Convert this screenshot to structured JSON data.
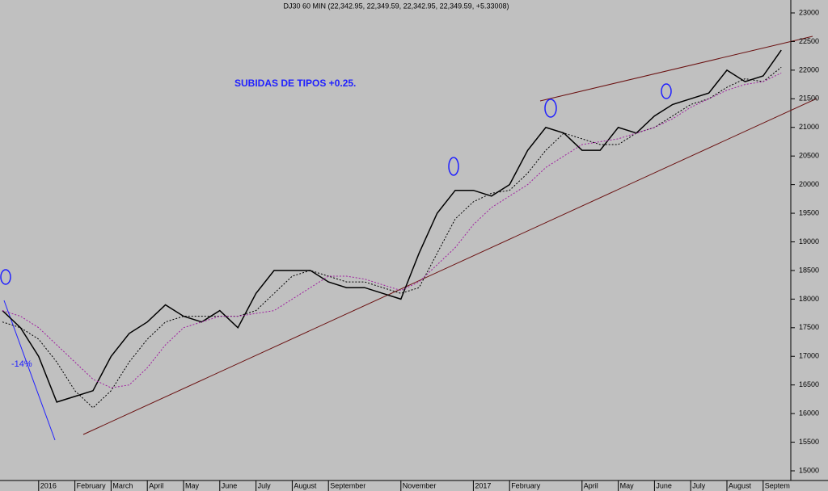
{
  "chart_data": {
    "type": "line",
    "title": "DJ30 60 MIN (22,342.95, 22,349.59, 22,342.95, 22,349.59, +5.33008)",
    "annotations": [
      "SUBIDAS DE TIPOS +0.25.",
      "-14%"
    ],
    "categories": [
      null,
      null,
      "2016",
      null,
      "February",
      null,
      "March",
      null,
      "April",
      null,
      "May",
      null,
      "June",
      null,
      "July",
      null,
      "August",
      null,
      "September",
      null,
      null,
      null,
      "November",
      null,
      null,
      null,
      "2017",
      null,
      "February",
      null,
      null,
      null,
      "April",
      null,
      "May",
      null,
      "June",
      null,
      "July",
      null,
      "August",
      null,
      "Septem",
      null
    ],
    "series": [
      {
        "name": "DJ30",
        "color": "#000000",
        "dash": false,
        "values": [
          17800,
          17500,
          17000,
          16200,
          16300,
          16400,
          17000,
          17400,
          17600,
          17900,
          17700,
          17600,
          17800,
          17500,
          18100,
          18500,
          18500,
          18500,
          18300,
          18200,
          18200,
          18100,
          18000,
          18800,
          19500,
          19900,
          19900,
          19800,
          20000,
          20600,
          21000,
          20900,
          20600,
          20600,
          21000,
          20900,
          21200,
          21400,
          21500,
          21600,
          22000,
          21800,
          21900,
          22350
        ]
      },
      {
        "color": "#000000",
        "dash": true,
        "values": [
          17600,
          17500,
          17300,
          16900,
          16400,
          16100,
          16400,
          16900,
          17300,
          17600,
          17700,
          17700,
          17700,
          17700,
          17800,
          18100,
          18400,
          18500,
          18400,
          18300,
          18300,
          18200,
          18100,
          18200,
          18800,
          19400,
          19700,
          19850,
          19900,
          20200,
          20600,
          20900,
          20800,
          20700,
          20700,
          20900,
          21000,
          21200,
          21400,
          21500,
          21700,
          21850,
          21800,
          22050
        ]
      },
      {
        "color": "#a020a0",
        "dash": true,
        "values": [
          17800,
          17700,
          17500,
          17200,
          16900,
          16600,
          16450,
          16500,
          16800,
          17200,
          17500,
          17600,
          17700,
          17700,
          17750,
          17800,
          18000,
          18200,
          18400,
          18400,
          18350,
          18250,
          18150,
          18300,
          18600,
          18900,
          19300,
          19600,
          19800,
          20000,
          20300,
          20500,
          20700,
          20750,
          20800,
          20900,
          21000,
          21150,
          21350,
          21500,
          21650,
          21750,
          21800,
          21950
        ]
      }
    ],
    "ylim": [
      15000,
      23000
    ],
    "yticks": [
      15000,
      15500,
      16000,
      16500,
      17000,
      17500,
      18000,
      18500,
      19000,
      19500,
      20000,
      20500,
      21000,
      21500,
      22000,
      22500,
      23000
    ],
    "grid": false
  }
}
